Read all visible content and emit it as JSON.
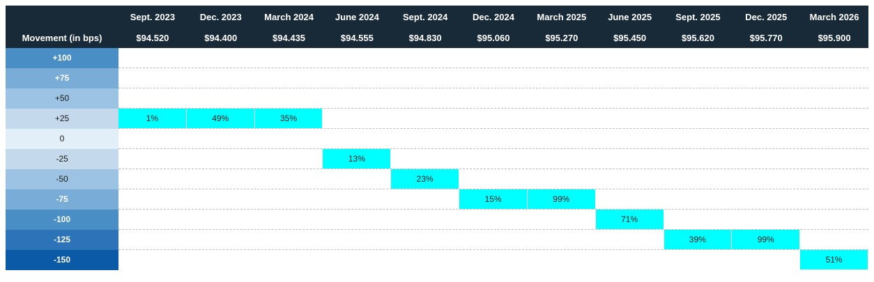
{
  "chart_data": {
    "type": "table",
    "corner_label": "Movement (in bps)",
    "columns": [
      {
        "meeting": "Sept. 2023",
        "price": "$94.520"
      },
      {
        "meeting": "Dec. 2023",
        "price": "$94.400"
      },
      {
        "meeting": "March 2024",
        "price": "$94.435"
      },
      {
        "meeting": "June 2024",
        "price": "$94.555"
      },
      {
        "meeting": "Sept. 2024",
        "price": "$94.830"
      },
      {
        "meeting": "Dec. 2024",
        "price": "$95.060"
      },
      {
        "meeting": "March 2025",
        "price": "$95.270"
      },
      {
        "meeting": "June 2025",
        "price": "$95.450"
      },
      {
        "meeting": "Sept. 2025",
        "price": "$95.620"
      },
      {
        "meeting": "Dec. 2025",
        "price": "$95.770"
      },
      {
        "meeting": "March 2026",
        "price": "$95.900"
      }
    ],
    "rows": [
      "+100",
      "+75",
      "+50",
      "+25",
      "0",
      "-25",
      "-50",
      "-75",
      "-100",
      "-125",
      "-150"
    ],
    "row_colors": [
      "#4a8ec6",
      "#79acd7",
      "#9cc3e4",
      "#c4d9ec",
      "#e2eef8",
      "#c4d9ec",
      "#9cc3e4",
      "#79acd7",
      "#4a8ec6",
      "#2d73b8",
      "#0b5aa8"
    ],
    "row_text_colors": [
      "#ffffff",
      "#ffffff",
      "#1a1a1a",
      "#1a1a1a",
      "#1a1a1a",
      "#1a1a1a",
      "#1a1a1a",
      "#ffffff",
      "#ffffff",
      "#ffffff",
      "#ffffff"
    ],
    "row_bold": [
      true,
      true,
      false,
      false,
      false,
      false,
      false,
      true,
      true,
      true,
      true
    ],
    "highlight_color": "#00ffff",
    "cells": [
      {
        "column": "Sept. 2023",
        "row": "+25",
        "label": "1%",
        "value": 1
      },
      {
        "column": "Dec. 2023",
        "row": "+25",
        "label": "49%",
        "value": 49
      },
      {
        "column": "March 2024",
        "row": "+25",
        "label": "35%",
        "value": 35
      },
      {
        "column": "June 2024",
        "row": "-25",
        "label": "13%",
        "value": 13
      },
      {
        "column": "Sept. 2024",
        "row": "-50",
        "label": "23%",
        "value": 23
      },
      {
        "column": "Dec. 2024",
        "row": "-75",
        "label": "15%",
        "value": 15
      },
      {
        "column": "March 2025",
        "row": "-75",
        "label": "99%",
        "value": 99
      },
      {
        "column": "June 2025",
        "row": "-100",
        "label": "71%",
        "value": 71
      },
      {
        "column": "Sept. 2025",
        "row": "-125",
        "label": "39%",
        "value": 39
      },
      {
        "column": "Dec. 2025",
        "row": "-125",
        "label": "99%",
        "value": 99
      },
      {
        "column": "March 2026",
        "row": "-150",
        "label": "51%",
        "value": 51
      }
    ]
  }
}
